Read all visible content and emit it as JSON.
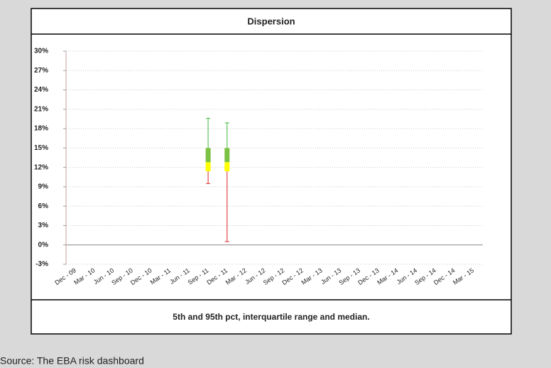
{
  "chart_data": {
    "type": "box",
    "title": "Dispersion",
    "caption": "5th and 95th pct, interquartile range and median.",
    "source": "Source: The EBA risk dashboard",
    "categories": [
      "Dec - 09",
      "Mar - 10",
      "Jun - 10",
      "Sep - 10",
      "Dec - 10",
      "Mar - 11",
      "Jun - 11",
      "Sep - 11",
      "Dec - 11",
      "Mar - 12",
      "Jun - 12",
      "Sep - 12",
      "Dec - 12",
      "Mar - 13",
      "Jun - 13",
      "Sep - 13",
      "Dec - 13",
      "Mar - 14",
      "Jun - 14",
      "Sep - 14",
      "Dec - 14",
      "Mar - 15"
    ],
    "p5": [
      null,
      null,
      null,
      null,
      null,
      null,
      null,
      9.5,
      0.5,
      null,
      null,
      null,
      null,
      null,
      null,
      null,
      null,
      null,
      null,
      null,
      null,
      null
    ],
    "q1": [
      null,
      null,
      null,
      null,
      null,
      null,
      null,
      11.4,
      11.4,
      null,
      null,
      null,
      null,
      null,
      null,
      null,
      null,
      null,
      null,
      null,
      null,
      null
    ],
    "median": [
      null,
      null,
      null,
      null,
      null,
      null,
      null,
      12.8,
      12.8,
      null,
      null,
      null,
      null,
      null,
      null,
      null,
      null,
      null,
      null,
      null,
      null,
      null
    ],
    "q3": [
      null,
      null,
      null,
      null,
      null,
      null,
      null,
      15,
      15,
      null,
      null,
      null,
      null,
      null,
      null,
      null,
      null,
      null,
      null,
      null,
      null,
      null
    ],
    "p95": [
      null,
      null,
      null,
      null,
      null,
      null,
      null,
      19.6,
      18.9,
      null,
      null,
      null,
      null,
      null,
      null,
      null,
      null,
      null,
      null,
      null,
      null,
      null
    ],
    "colors": {
      "upper_whisker": "#5cc45c",
      "upper_box": "#7cc242",
      "lower_box": "#ffff00",
      "lower_whisker": "#e04848"
    },
    "ylim": [
      -3,
      30
    ],
    "yticks": [
      {
        "value": -3,
        "label": "-3%"
      },
      {
        "value": 0,
        "label": "0%"
      },
      {
        "value": 3,
        "label": "3%"
      },
      {
        "value": 6,
        "label": "6%"
      },
      {
        "value": 9,
        "label": "9%"
      },
      {
        "value": 12,
        "label": "12%"
      },
      {
        "value": 15,
        "label": "15%"
      },
      {
        "value": 18,
        "label": "18%"
      },
      {
        "value": 21,
        "label": "21%"
      },
      {
        "value": 24,
        "label": "24%"
      },
      {
        "value": 27,
        "label": "27%"
      },
      {
        "value": 30,
        "label": "30%"
      }
    ],
    "grid": true
  }
}
